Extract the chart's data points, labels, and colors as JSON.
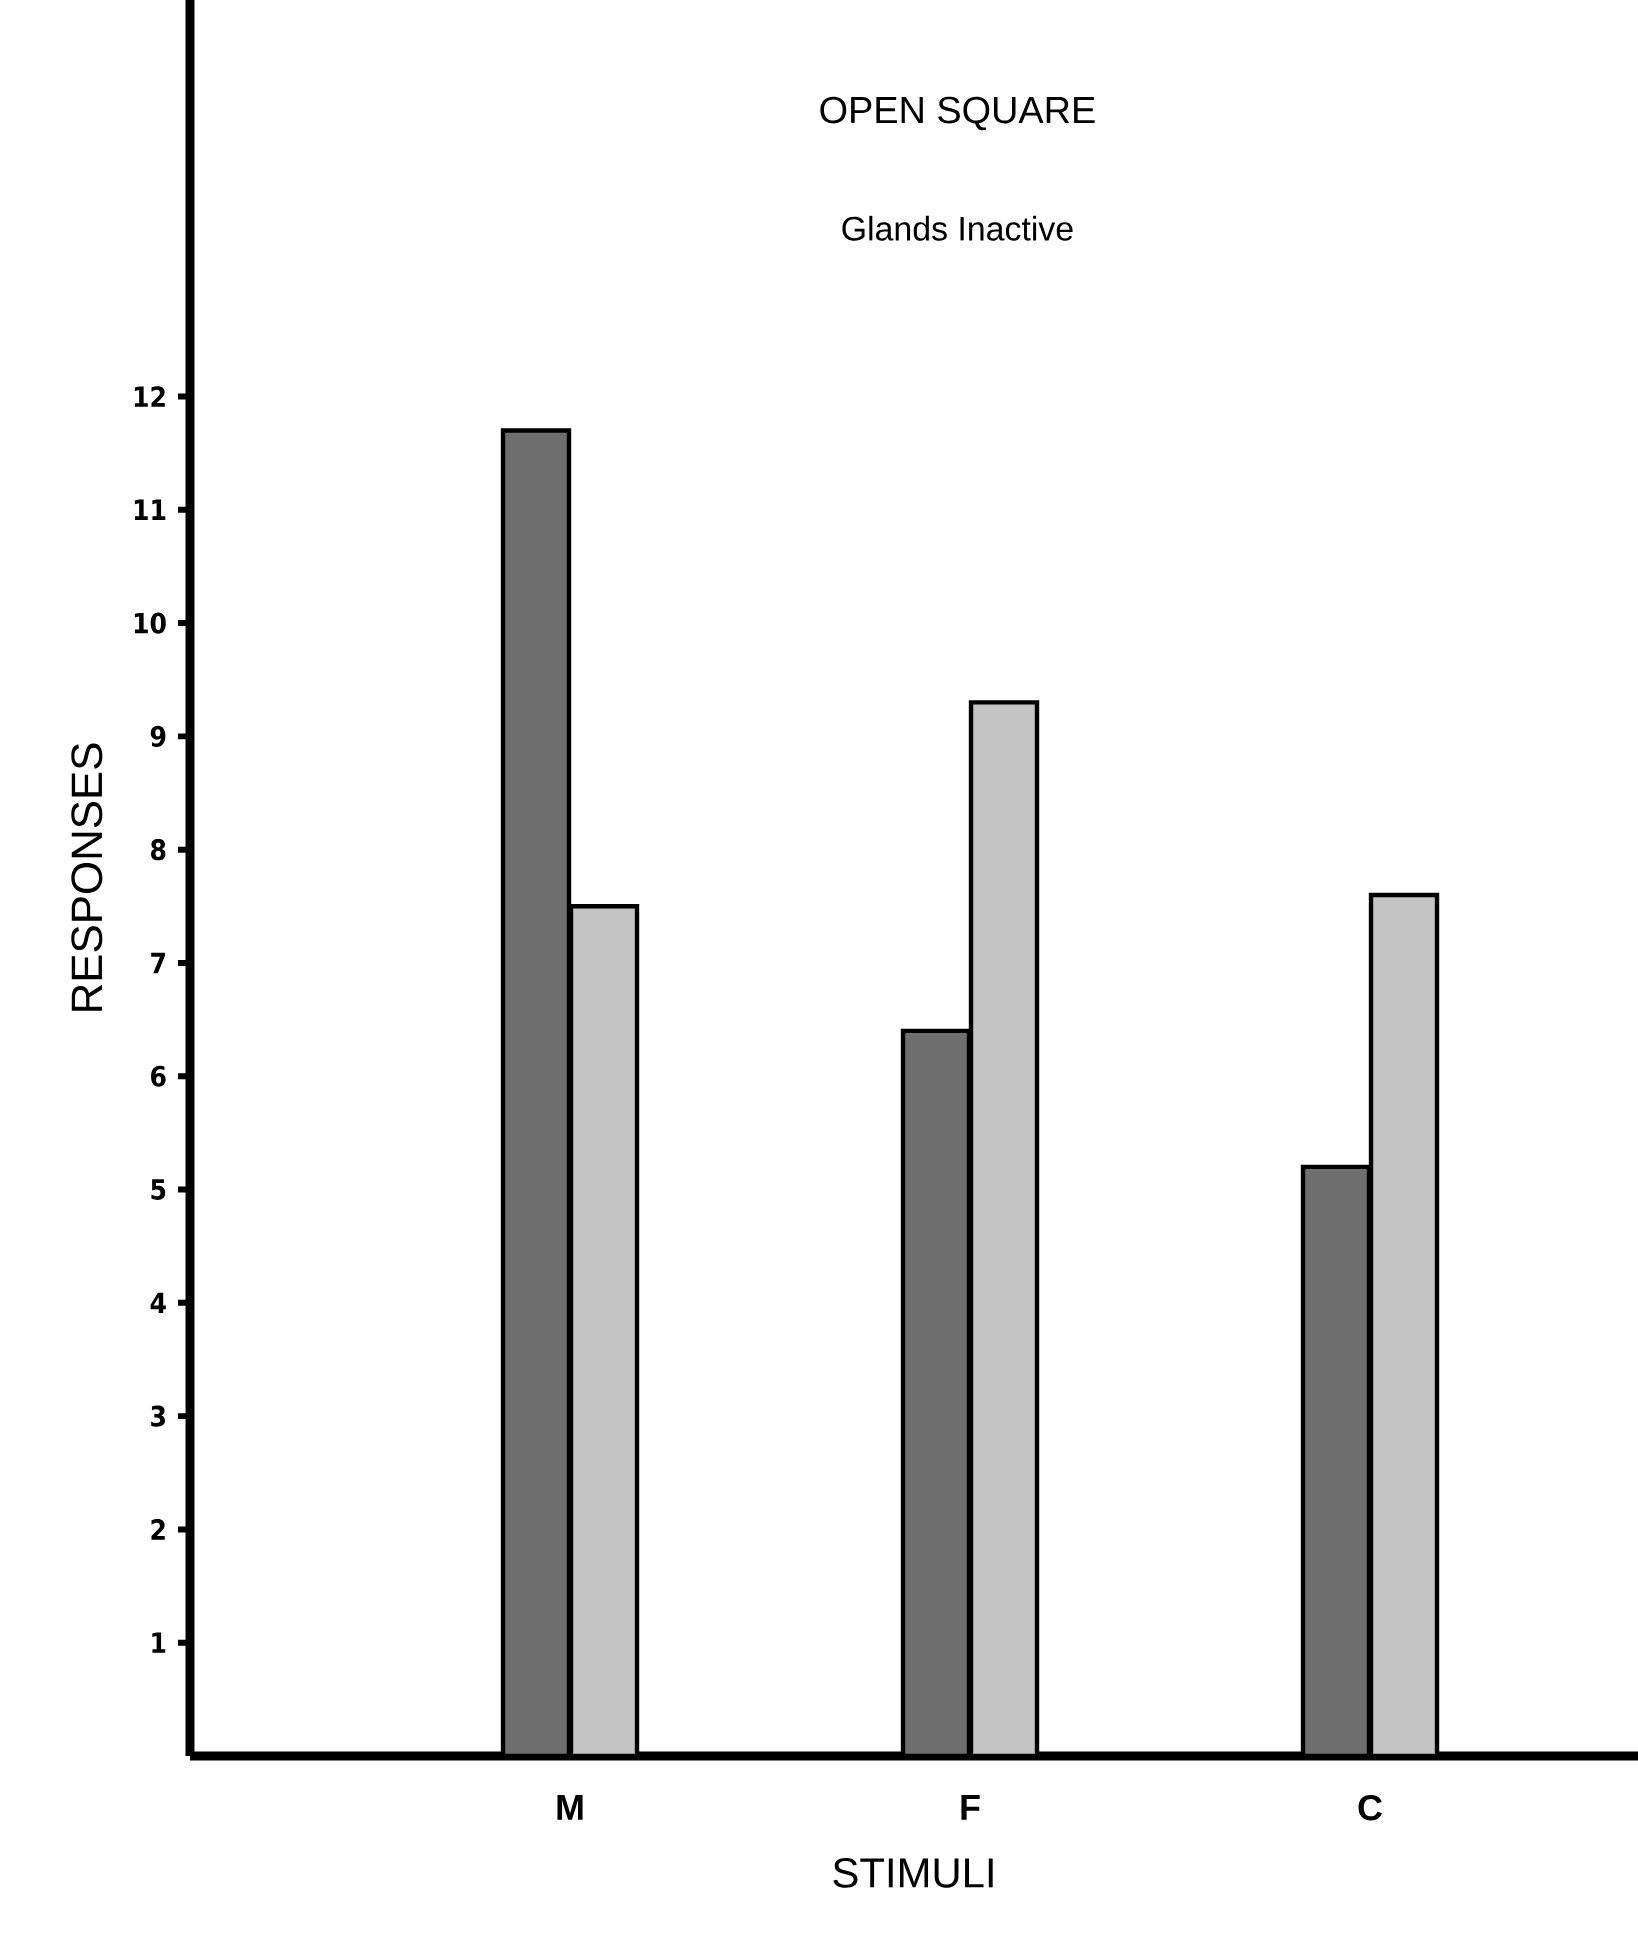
{
  "chart_data": {
    "type": "bar",
    "title": "OPEN   SQUARE",
    "subtitle": "Glands Inactive",
    "xlabel": "STIMULI",
    "ylabel": "RESPONSES",
    "categories": [
      "M",
      "F",
      "C"
    ],
    "series": [
      {
        "color": "#6e6e6e",
        "values": [
          11.7,
          6.4,
          5.2
        ]
      },
      {
        "color": "#c4c4c4",
        "values": [
          7.5,
          9.3,
          7.6
        ]
      }
    ],
    "ylim": [
      0,
      15.5
    ],
    "yticks": [
      1,
      2,
      3,
      4,
      5,
      6,
      7,
      8,
      9,
      10,
      11,
      12
    ]
  }
}
